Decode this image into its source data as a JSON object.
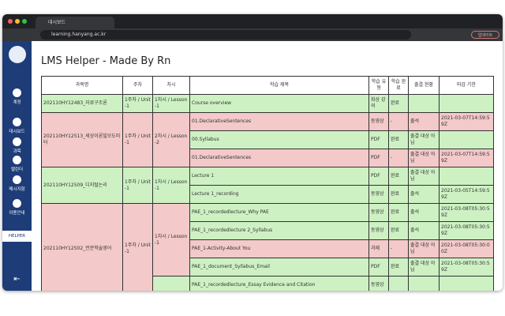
{
  "browser": {
    "tab_title": "대시보드",
    "url": "learning.hanyang.ac.kr",
    "update_button": "업데이트"
  },
  "sidebar": {
    "items": [
      "계정",
      "대시보드",
      "과목",
      "캘린더",
      "메시지함",
      "이용안내"
    ],
    "helper": "HELPER"
  },
  "page": {
    "title": "LMS Helper - Made By Rn"
  },
  "table": {
    "headers": [
      "과목명",
      "주차",
      "차시",
      "학습 제목",
      "학습 유형",
      "학습 완료",
      "출결 현황",
      "마감 기한"
    ],
    "courses": [
      {
        "name": "202110HY12483_자료구조론",
        "week": "1주차 / Unit-1",
        "lessons": [
          {
            "label": "1차시 / Lesson-1",
            "items": [
              {
                "title": "Course overview",
                "type": "화상 강의",
                "done": "완료",
                "attendance": null,
                "deadline": null
              }
            ]
          }
        ]
      },
      {
        "name": "202110HY12513_세상이론빌모도미터",
        "week": "1주차 / Unit-1",
        "lessons": [
          {
            "label": "2차시 / Lesson-2",
            "items": [
              {
                "title": "01.DeclarativeSentences",
                "type": "동영상",
                "done": "-",
                "attendance": "출석",
                "deadline": "2021-03-07T14:59:59Z"
              },
              {
                "title": "00.Syllabus",
                "type": "PDF",
                "done": "완료",
                "attendance": "출결 대상 아님",
                "deadline": null
              },
              {
                "title": "01.DeclarativeSentences",
                "type": "PDF",
                "done": "-",
                "attendance": "출결 대상 아님",
                "deadline": "2021-03-07T14:59:59Z"
              }
            ]
          }
        ]
      },
      {
        "name": "202110HY12509_디지털논리",
        "week": "1주차 / Unit-1",
        "lessons": [
          {
            "label": "1차시 / Lesson-1",
            "items": [
              {
                "title": "Lecture 1",
                "type": "PDF",
                "done": "완료",
                "attendance": "출결 대상 아님",
                "deadline": null
              },
              {
                "title": "Lecture 1_recording",
                "type": "동영상",
                "done": "완료",
                "attendance": "출석",
                "deadline": "2021-03-05T14:59:59Z"
              }
            ]
          }
        ]
      },
      {
        "name": "202110HY12502_전문학술영어",
        "week": "1주차 / Unit-1",
        "lessons": [
          {
            "label": "1차시 / Lesson-1",
            "items": [
              {
                "title": "PAE_1_recordedlecture_Why PAE",
                "type": "동영상",
                "done": "완료",
                "attendance": "출석",
                "deadline": "2021-03-08T05:30:59Z"
              },
              {
                "title": "PAE_1_recordedlecture 2_Syllabus",
                "type": "동영상",
                "done": "완료",
                "attendance": "출석",
                "deadline": "2021-03-08T05:30:59Z"
              },
              {
                "title": "PAE_1-Activity-About You",
                "type": "과제",
                "done": "-",
                "attendance": "출결 대상 아님",
                "deadline": "2021-03-08T05:30:00Z"
              },
              {
                "title": "PAE_1_document_Syllabus_Email",
                "type": "PDF",
                "done": "완료",
                "attendance": "출결 대상 아님",
                "deadline": "2021-03-08T05:30:59Z"
              }
            ]
          },
          {
            "label": null,
            "items": [
              {
                "title": "PAE_1_recordedlecture_Essay Evidence and Citation",
                "type": "동영상",
                "done": null,
                "attendance": null,
                "deadline": null
              }
            ]
          }
        ]
      }
    ]
  }
}
